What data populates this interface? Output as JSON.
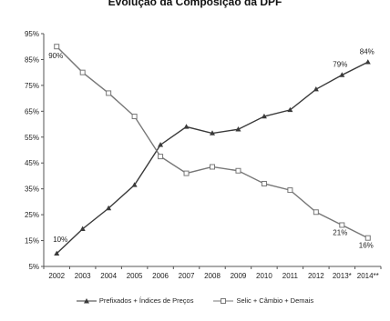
{
  "chart_data": {
    "type": "line",
    "title": "Evolução da Composição da DPF",
    "categories": [
      "2002",
      "2003",
      "2004",
      "2005",
      "2006",
      "2007",
      "2008",
      "2009",
      "2010",
      "2011",
      "2012",
      "2013*",
      "2014**"
    ],
    "y_ticks": [
      "5%",
      "15%",
      "25%",
      "35%",
      "45%",
      "55%",
      "65%",
      "75%",
      "85%",
      "95%"
    ],
    "ylim": [
      5,
      95
    ],
    "series": [
      {
        "name": "Prefixados + Índices de Preços",
        "color": "#3a3a3a",
        "marker": "triangle",
        "values": [
          10,
          19.5,
          27.5,
          36.5,
          52,
          59,
          56.5,
          58,
          63,
          65.5,
          73.5,
          79,
          84
        ]
      },
      {
        "name": "Selic + Câmbio + Demais",
        "color": "#777777",
        "marker": "square",
        "values": [
          90,
          80,
          72,
          63,
          47.5,
          41,
          43.5,
          42,
          37,
          34.5,
          26,
          21,
          16
        ]
      }
    ],
    "annotations": [
      {
        "text": "90%",
        "series": 1,
        "index": 0
      },
      {
        "text": "10%",
        "series": 0,
        "index": 0
      },
      {
        "text": "79%",
        "series": 0,
        "index": 11
      },
      {
        "text": "84%",
        "series": 0,
        "index": 12
      },
      {
        "text": "21%",
        "series": 1,
        "index": 11
      },
      {
        "text": "16%",
        "series": 1,
        "index": 12
      }
    ]
  }
}
